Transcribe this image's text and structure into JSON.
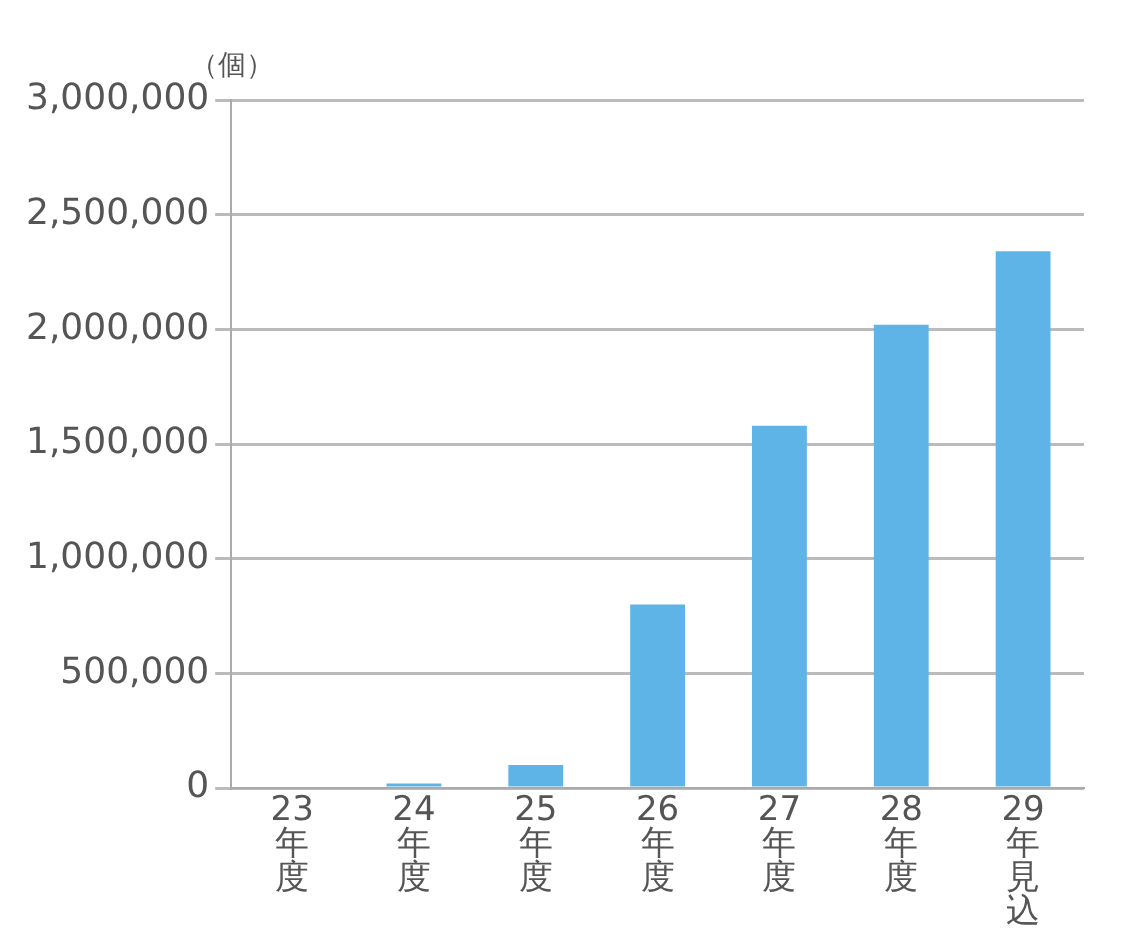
{
  "chart_data": {
    "type": "bar",
    "ylabel": "（個）",
    "categories": [
      "23年度",
      "24年度",
      "25年度",
      "26年度",
      "27年度",
      "28年度",
      "29年見込"
    ],
    "values": [
      0,
      20000,
      100000,
      800000,
      1580000,
      2020000,
      2340000
    ],
    "color": "#5eb4e6",
    "ylim": [
      0,
      3000000
    ],
    "yticks": [
      0,
      {
        "value": 500000,
        "label": "500,000"
      },
      {
        "value": 1000000,
        "label": "1,000,000"
      },
      {
        "value": 1500000,
        "label": "1,500,000"
      },
      {
        "value": 2000000,
        "label": "2,000,000"
      },
      {
        "value": 2500000,
        "label": "2,500,000"
      },
      {
        "value": 3000000,
        "label": "3,000,000"
      }
    ],
    "grid": "y",
    "legend": false
  }
}
